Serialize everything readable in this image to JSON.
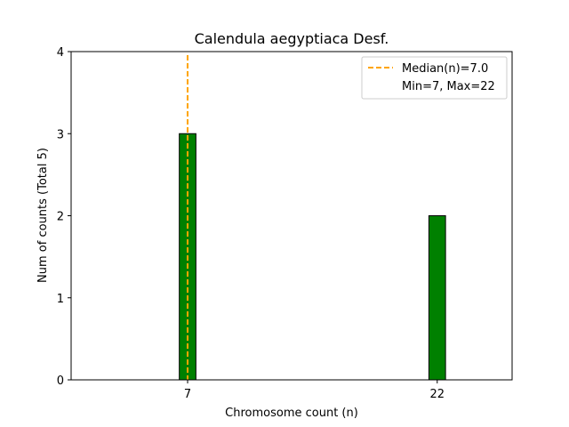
{
  "chart_data": {
    "type": "bar",
    "title": "Calendula aegyptiaca Desf.",
    "xlabel": "Chromosome count (n)",
    "ylabel": "Num of counts     (Total 5)",
    "x": [
      7,
      22
    ],
    "values": [
      3,
      2
    ],
    "xlim": [
      0,
      26.5
    ],
    "ylim": [
      0,
      4
    ],
    "xticks": [
      7,
      22
    ],
    "yticks": [
      0,
      1,
      2,
      3,
      4
    ],
    "bar_width": 1,
    "bar_color": "#008000",
    "bar_edge_color": "#000000",
    "median": {
      "value": 7.0,
      "color": "#FFA500",
      "label": "Median(n)=7.0"
    },
    "legend": {
      "placement": "top-right",
      "entries": [
        "Median(n)=7.0",
        "Min=7, Max=22"
      ]
    },
    "grid": false
  }
}
